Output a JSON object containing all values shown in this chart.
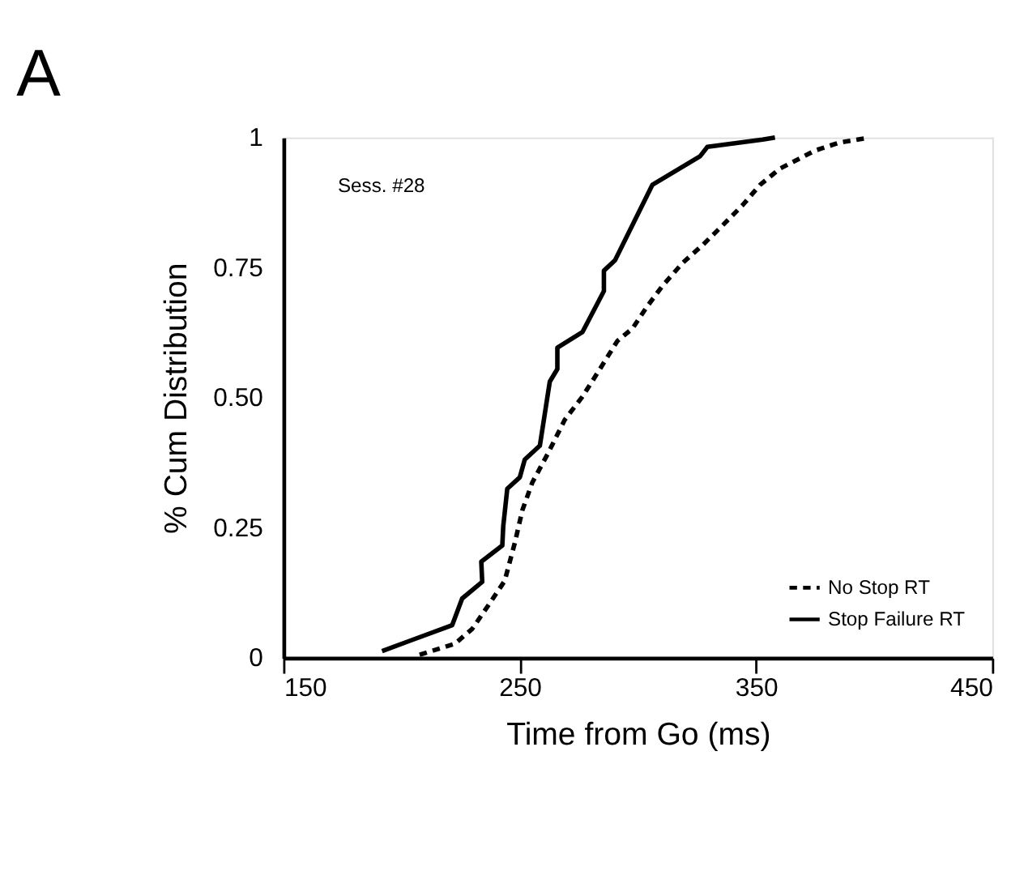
{
  "chart_data": {
    "type": "line",
    "title": "A",
    "xlabel": "Time from Go (ms)",
    "ylabel": "% Cum Distribution",
    "annotations": [
      "Sess. #28"
    ],
    "xlim": [
      150,
      450
    ],
    "xticks": [
      150,
      250,
      350,
      450
    ],
    "ylim": [
      0,
      1
    ],
    "yticks": [
      0,
      0.25,
      {
        "value": 0.5,
        "label": "0.50"
      },
      0.75,
      1
    ],
    "grid": false,
    "legend": "bottom right",
    "marker": "none",
    "series": [
      {
        "name": "No Stop  RT",
        "color": "#000000",
        "line_style": "dashed",
        "x": [
          207.6,
          222.5,
          229.9,
          237.3,
          243.6,
          247.9,
          251.1,
          255.3,
          261.7,
          269.1,
          276.5,
          283.9,
          291.3,
          297.7,
          304.0,
          310.4,
          318.9,
          327.3,
          335.8,
          344.3,
          351.7,
          360,
          375,
          385,
          398
        ],
        "values": [
          0.006,
          0.027,
          0.056,
          0.105,
          0.148,
          0.221,
          0.284,
          0.337,
          0.391,
          0.458,
          0.502,
          0.555,
          0.609,
          0.633,
          0.676,
          0.715,
          0.759,
          0.793,
          0.831,
          0.87,
          0.909,
          0.94,
          0.975,
          0.99,
          1.0
        ]
      },
      {
        "name": "Stop Failure RT",
        "color": "#000000",
        "line_style": "solid",
        "x": [
          191.7,
          221.4,
          225.6,
          234.1,
          233.7,
          242.6,
          243.0,
          244.7,
          250.0,
          252.1,
          258.5,
          262.7,
          265.9,
          265.9,
          276.5,
          285.6,
          285.6,
          290.3,
          306.1,
          326.3,
          329.4,
          352.8,
          358
        ],
        "values": [
          0.013,
          0.063,
          0.114,
          0.146,
          0.185,
          0.216,
          0.253,
          0.325,
          0.347,
          0.381,
          0.408,
          0.531,
          0.555,
          0.596,
          0.626,
          0.705,
          0.744,
          0.764,
          0.909,
          0.964,
          0.982,
          0.996,
          1.0
        ]
      }
    ]
  }
}
